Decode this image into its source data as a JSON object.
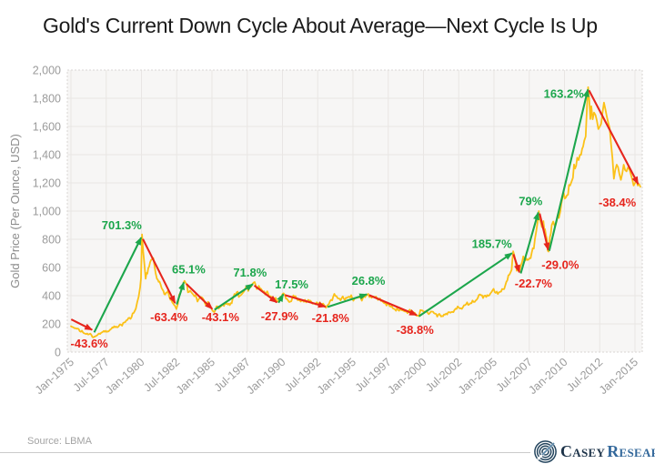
{
  "source": "Source: LBMA",
  "branding": {
    "primary": "Casey",
    "secondary": "Research",
    "color_primary": "#1d3349",
    "color_secondary": "#33689b"
  },
  "chart_data": {
    "type": "line",
    "title": "Gold's Current Down Cycle About Average—Next Cycle Is Up",
    "xlabel": "",
    "ylabel": "Gold Price (Per Ounce, USD)",
    "ylim": [
      0,
      2000
    ],
    "y_ticks": [
      "0",
      "200",
      "400",
      "600",
      "800",
      "1,000",
      "1,200",
      "1,400",
      "1,600",
      "1,800",
      "2,000"
    ],
    "x_ticks": [
      "Jan-1975",
      "Jul-1977",
      "Jan-1980",
      "Jul-1982",
      "Jan-1985",
      "Jul-1987",
      "Jan-1990",
      "Jul-1992",
      "Jan-1995",
      "Jul-1997",
      "Jan-2000",
      "Jul-2002",
      "Jan-2005",
      "Jul-2007",
      "Jan-2010",
      "Jul-2012",
      "Jan-2015"
    ],
    "x_tick_start_year": 1975,
    "x_tick_interval_years": 2.5,
    "grid": true,
    "legend": "none",
    "series_name": "Gold Price (LBMA)",
    "series_color": "#FBC118",
    "colors": {
      "up": "#1CA64C",
      "down": "#E6251D"
    },
    "series": [
      [
        1975.0,
        183
      ],
      [
        1975.1,
        178
      ],
      [
        1975.25,
        169
      ],
      [
        1975.4,
        166
      ],
      [
        1975.55,
        163
      ],
      [
        1975.7,
        144
      ],
      [
        1975.85,
        140
      ],
      [
        1976.0,
        131
      ],
      [
        1976.15,
        132
      ],
      [
        1976.3,
        127
      ],
      [
        1976.45,
        121
      ],
      [
        1976.6,
        104
      ],
      [
        1976.72,
        110
      ],
      [
        1976.85,
        118
      ],
      [
        1977.0,
        132
      ],
      [
        1977.2,
        140
      ],
      [
        1977.4,
        144
      ],
      [
        1977.6,
        147
      ],
      [
        1977.8,
        161
      ],
      [
        1978.0,
        173
      ],
      [
        1978.2,
        181
      ],
      [
        1978.4,
        186
      ],
      [
        1978.55,
        194
      ],
      [
        1978.7,
        207
      ],
      [
        1978.85,
        212
      ],
      [
        1979.0,
        228
      ],
      [
        1979.15,
        243
      ],
      [
        1979.3,
        247
      ],
      [
        1979.45,
        278
      ],
      [
        1979.6,
        308
      ],
      [
        1979.7,
        356
      ],
      [
        1979.8,
        392
      ],
      [
        1979.9,
        458
      ],
      [
        1979.97,
        524
      ],
      [
        1980.04,
        835
      ],
      [
        1980.12,
        712
      ],
      [
        1980.2,
        632
      ],
      [
        1980.3,
        520
      ],
      [
        1980.42,
        556
      ],
      [
        1980.55,
        608
      ],
      [
        1980.68,
        652
      ],
      [
        1980.78,
        661
      ],
      [
        1980.9,
        625
      ],
      [
        1981.0,
        562
      ],
      [
        1981.1,
        520
      ],
      [
        1981.22,
        498
      ],
      [
        1981.35,
        482
      ],
      [
        1981.5,
        442
      ],
      [
        1981.62,
        410
      ],
      [
        1981.75,
        421
      ],
      [
        1981.88,
        434
      ],
      [
        1982.0,
        386
      ],
      [
        1982.12,
        370
      ],
      [
        1982.25,
        344
      ],
      [
        1982.38,
        327
      ],
      [
        1982.48,
        305
      ],
      [
        1982.58,
        342
      ],
      [
        1982.68,
        407
      ],
      [
        1982.78,
        422
      ],
      [
        1982.9,
        452
      ],
      [
        1983.05,
        505
      ],
      [
        1983.15,
        488
      ],
      [
        1983.3,
        424
      ],
      [
        1983.45,
        436
      ],
      [
        1983.6,
        416
      ],
      [
        1983.75,
        396
      ],
      [
        1983.9,
        384
      ],
      [
        1984.05,
        374
      ],
      [
        1984.2,
        391
      ],
      [
        1984.35,
        381
      ],
      [
        1984.5,
        346
      ],
      [
        1984.65,
        341
      ],
      [
        1984.8,
        336
      ],
      [
        1984.95,
        314
      ],
      [
        1985.1,
        288
      ],
      [
        1985.25,
        301
      ],
      [
        1985.4,
        324
      ],
      [
        1985.55,
        316
      ],
      [
        1985.7,
        331
      ],
      [
        1985.85,
        327
      ],
      [
        1986.0,
        341
      ],
      [
        1986.2,
        343
      ],
      [
        1986.4,
        346
      ],
      [
        1986.6,
        412
      ],
      [
        1986.75,
        424
      ],
      [
        1986.9,
        391
      ],
      [
        1987.05,
        404
      ],
      [
        1987.2,
        421
      ],
      [
        1987.35,
        446
      ],
      [
        1987.5,
        451
      ],
      [
        1987.65,
        461
      ],
      [
        1987.8,
        466
      ],
      [
        1987.95,
        492
      ],
      [
        1988.1,
        476
      ],
      [
        1988.25,
        451
      ],
      [
        1988.4,
        453
      ],
      [
        1988.55,
        438
      ],
      [
        1988.7,
        431
      ],
      [
        1988.85,
        421
      ],
      [
        1989.0,
        409
      ],
      [
        1989.15,
        396
      ],
      [
        1989.3,
        386
      ],
      [
        1989.45,
        373
      ],
      [
        1989.6,
        362
      ],
      [
        1989.7,
        358
      ],
      [
        1989.85,
        393
      ],
      [
        1990.0,
        411
      ],
      [
        1990.08,
        417
      ],
      [
        1990.25,
        378
      ],
      [
        1990.4,
        366
      ],
      [
        1990.55,
        358
      ],
      [
        1990.7,
        386
      ],
      [
        1990.85,
        393
      ],
      [
        1991.0,
        381
      ],
      [
        1991.15,
        371
      ],
      [
        1991.3,
        359
      ],
      [
        1991.45,
        363
      ],
      [
        1991.6,
        371
      ],
      [
        1991.75,
        359
      ],
      [
        1991.9,
        363
      ],
      [
        1992.05,
        356
      ],
      [
        1992.2,
        344
      ],
      [
        1992.35,
        339
      ],
      [
        1992.5,
        346
      ],
      [
        1992.65,
        353
      ],
      [
        1992.8,
        341
      ],
      [
        1992.95,
        334
      ],
      [
        1993.15,
        327
      ],
      [
        1993.3,
        341
      ],
      [
        1993.45,
        371
      ],
      [
        1993.6,
        393
      ],
      [
        1993.75,
        399
      ],
      [
        1993.9,
        384
      ],
      [
        1994.05,
        379
      ],
      [
        1994.2,
        383
      ],
      [
        1994.35,
        379
      ],
      [
        1994.5,
        386
      ],
      [
        1994.65,
        391
      ],
      [
        1994.8,
        388
      ],
      [
        1994.95,
        381
      ],
      [
        1995.1,
        376
      ],
      [
        1995.25,
        383
      ],
      [
        1995.4,
        389
      ],
      [
        1995.55,
        386
      ],
      [
        1995.7,
        384
      ],
      [
        1995.85,
        389
      ],
      [
        1996.0,
        406
      ],
      [
        1996.08,
        413
      ],
      [
        1996.25,
        399
      ],
      [
        1996.4,
        393
      ],
      [
        1996.55,
        386
      ],
      [
        1996.7,
        383
      ],
      [
        1996.85,
        379
      ],
      [
        1997.0,
        361
      ],
      [
        1997.15,
        353
      ],
      [
        1997.3,
        349
      ],
      [
        1997.45,
        341
      ],
      [
        1997.6,
        326
      ],
      [
        1997.75,
        325
      ],
      [
        1997.9,
        307
      ],
      [
        1998.05,
        293
      ],
      [
        1998.2,
        299
      ],
      [
        1998.35,
        306
      ],
      [
        1998.5,
        296
      ],
      [
        1998.65,
        289
      ],
      [
        1998.8,
        286
      ],
      [
        1998.95,
        293
      ],
      [
        1999.1,
        289
      ],
      [
        1999.25,
        284
      ],
      [
        1999.4,
        277
      ],
      [
        1999.55,
        258
      ],
      [
        1999.68,
        254
      ],
      [
        1999.78,
        298
      ],
      [
        1999.9,
        296
      ],
      [
        2000.0,
        288
      ],
      [
        2000.15,
        284
      ],
      [
        2000.3,
        279
      ],
      [
        2000.45,
        277
      ],
      [
        2000.6,
        287
      ],
      [
        2000.75,
        276
      ],
      [
        2000.9,
        270
      ],
      [
        2001.05,
        265
      ],
      [
        2001.2,
        260
      ],
      [
        2001.32,
        256
      ],
      [
        2001.45,
        267
      ],
      [
        2001.6,
        273
      ],
      [
        2001.75,
        281
      ],
      [
        2001.9,
        279
      ],
      [
        2002.05,
        285
      ],
      [
        2002.2,
        299
      ],
      [
        2002.35,
        306
      ],
      [
        2002.5,
        316
      ],
      [
        2002.65,
        311
      ],
      [
        2002.8,
        319
      ],
      [
        2002.95,
        333
      ],
      [
        2003.1,
        353
      ],
      [
        2003.25,
        339
      ],
      [
        2003.4,
        346
      ],
      [
        2003.55,
        356
      ],
      [
        2003.7,
        366
      ],
      [
        2003.85,
        383
      ],
      [
        2004.0,
        409
      ],
      [
        2004.15,
        403
      ],
      [
        2004.3,
        399
      ],
      [
        2004.45,
        391
      ],
      [
        2004.6,
        399
      ],
      [
        2004.75,
        416
      ],
      [
        2004.9,
        439
      ],
      [
        2005.05,
        426
      ],
      [
        2005.2,
        429
      ],
      [
        2005.35,
        423
      ],
      [
        2005.5,
        429
      ],
      [
        2005.65,
        446
      ],
      [
        2005.8,
        473
      ],
      [
        2005.95,
        509
      ],
      [
        2006.1,
        549
      ],
      [
        2006.25,
        583
      ],
      [
        2006.36,
        715
      ],
      [
        2006.45,
        682
      ],
      [
        2006.55,
        626
      ],
      [
        2006.68,
        596
      ],
      [
        2006.8,
        572
      ],
      [
        2006.9,
        613
      ],
      [
        2007.0,
        641
      ],
      [
        2007.15,
        656
      ],
      [
        2007.3,
        663
      ],
      [
        2007.45,
        656
      ],
      [
        2007.6,
        666
      ],
      [
        2007.75,
        736
      ],
      [
        2007.9,
        801
      ],
      [
        2008.0,
        859
      ],
      [
        2008.1,
        926
      ],
      [
        2008.18,
        1000
      ],
      [
        2008.3,
        926
      ],
      [
        2008.4,
        886
      ],
      [
        2008.5,
        929
      ],
      [
        2008.62,
        871
      ],
      [
        2008.75,
        801
      ],
      [
        2008.87,
        713
      ],
      [
        2008.97,
        816
      ],
      [
        2009.1,
        901
      ],
      [
        2009.2,
        926
      ],
      [
        2009.3,
        896
      ],
      [
        2009.45,
        931
      ],
      [
        2009.6,
        951
      ],
      [
        2009.7,
        996
      ],
      [
        2009.85,
        1091
      ],
      [
        2009.95,
        1128
      ],
      [
        2010.1,
        1096
      ],
      [
        2010.25,
        1116
      ],
      [
        2010.4,
        1181
      ],
      [
        2010.5,
        1209
      ],
      [
        2010.6,
        1236
      ],
      [
        2010.75,
        1301
      ],
      [
        2010.9,
        1379
      ],
      [
        2011.0,
        1361
      ],
      [
        2011.1,
        1399
      ],
      [
        2011.25,
        1441
      ],
      [
        2011.4,
        1499
      ],
      [
        2011.5,
        1529
      ],
      [
        2011.6,
        1748
      ],
      [
        2011.68,
        1879
      ],
      [
        2011.76,
        1781
      ],
      [
        2011.83,
        1653
      ],
      [
        2011.9,
        1744
      ],
      [
        2012.0,
        1651
      ],
      [
        2012.1,
        1699
      ],
      [
        2012.2,
        1681
      ],
      [
        2012.3,
        1641
      ],
      [
        2012.4,
        1581
      ],
      [
        2012.5,
        1599
      ],
      [
        2012.6,
        1619
      ],
      [
        2012.7,
        1701
      ],
      [
        2012.8,
        1769
      ],
      [
        2012.9,
        1721
      ],
      [
        2013.0,
        1671
      ],
      [
        2013.1,
        1629
      ],
      [
        2013.2,
        1591
      ],
      [
        2013.3,
        1481
      ],
      [
        2013.4,
        1379
      ],
      [
        2013.5,
        1229
      ],
      [
        2013.6,
        1291
      ],
      [
        2013.7,
        1329
      ],
      [
        2013.8,
        1311
      ],
      [
        2013.9,
        1259
      ],
      [
        2014.0,
        1221
      ],
      [
        2014.1,
        1264
      ],
      [
        2014.2,
        1329
      ],
      [
        2014.3,
        1291
      ],
      [
        2014.4,
        1281
      ],
      [
        2014.5,
        1309
      ],
      [
        2014.6,
        1299
      ],
      [
        2014.7,
        1261
      ],
      [
        2014.8,
        1229
      ],
      [
        2014.9,
        1181
      ],
      [
        2015.0,
        1199
      ],
      [
        2015.1,
        1219
      ],
      [
        2015.2,
        1181
      ],
      [
        2015.3,
        1191
      ],
      [
        2015.38,
        1172
      ]
    ],
    "cycles": [
      {
        "label": "-43.6%",
        "dir": "down",
        "from": [
          1975.02,
          232
        ],
        "to": [
          1976.5,
          158
        ],
        "label_at": [
          1976.3,
          62
        ]
      },
      {
        "label": "701.3%",
        "dir": "up",
        "from": [
          1976.65,
          140
        ],
        "to": [
          1979.98,
          812
        ],
        "label_at": [
          1978.6,
          900
        ]
      },
      {
        "label": "-63.4%",
        "dir": "down",
        "from": [
          1980.1,
          802
        ],
        "to": [
          1982.38,
          348
        ],
        "label_at": [
          1981.95,
          250
        ]
      },
      {
        "label": "65.1%",
        "dir": "up",
        "from": [
          1982.5,
          338
        ],
        "to": [
          1983.0,
          494
        ],
        "label_at": [
          1983.35,
          588
        ]
      },
      {
        "label": "-43.1%",
        "dir": "down",
        "from": [
          1983.18,
          484
        ],
        "to": [
          1985.02,
          306
        ],
        "label_at": [
          1985.6,
          250
        ]
      },
      {
        "label": "71.8%",
        "dir": "up",
        "from": [
          1985.18,
          300
        ],
        "to": [
          1987.9,
          482
        ],
        "label_at": [
          1987.7,
          565
        ]
      },
      {
        "label": "-27.9%",
        "dir": "down",
        "from": [
          1988.0,
          472
        ],
        "to": [
          1989.6,
          352
        ],
        "label_at": [
          1989.8,
          256
        ]
      },
      {
        "label": "17.5%",
        "dir": "up",
        "from": [
          1989.72,
          350
        ],
        "to": [
          1990.06,
          410
        ],
        "label_at": [
          1990.65,
          480
        ]
      },
      {
        "label": "-21.8%",
        "dir": "down",
        "from": [
          1990.18,
          404
        ],
        "to": [
          1993.05,
          322
        ],
        "label_at": [
          1993.4,
          243
        ]
      },
      {
        "label": "26.8%",
        "dir": "up",
        "from": [
          1993.2,
          320
        ],
        "to": [
          1995.98,
          410
        ],
        "label_at": [
          1996.1,
          506
        ]
      },
      {
        "label": "-38.8%",
        "dir": "down",
        "from": [
          1996.15,
          404
        ],
        "to": [
          1999.52,
          262
        ],
        "label_at": [
          1999.4,
          158
        ]
      },
      {
        "label": "185.7%",
        "dir": "up",
        "from": [
          1999.68,
          254
        ],
        "to": [
          2006.28,
          702
        ],
        "label_at": [
          2004.85,
          768
        ]
      },
      {
        "label": "-22.7%",
        "dir": "down",
        "from": [
          2006.38,
          694
        ],
        "to": [
          2006.8,
          566
        ],
        "label_at": [
          2007.8,
          488
        ]
      },
      {
        "label": "79%",
        "dir": "up",
        "from": [
          2006.9,
          558
        ],
        "to": [
          2008.14,
          990
        ],
        "label_at": [
          2007.6,
          1072
        ]
      },
      {
        "label": "-29.0%",
        "dir": "down",
        "from": [
          2008.24,
          982
        ],
        "to": [
          2008.85,
          724
        ],
        "label_at": [
          2009.7,
          618
        ]
      },
      {
        "label": "163.2%",
        "dir": "up",
        "from": [
          2008.92,
          718
        ],
        "to": [
          2011.66,
          1862
        ],
        "label_at": [
          2009.95,
          1832
        ]
      },
      {
        "label": "-38.4%",
        "dir": "down",
        "from": [
          2011.74,
          1856
        ],
        "to": [
          2015.22,
          1192
        ],
        "label_at": [
          2013.75,
          1060
        ]
      }
    ]
  }
}
